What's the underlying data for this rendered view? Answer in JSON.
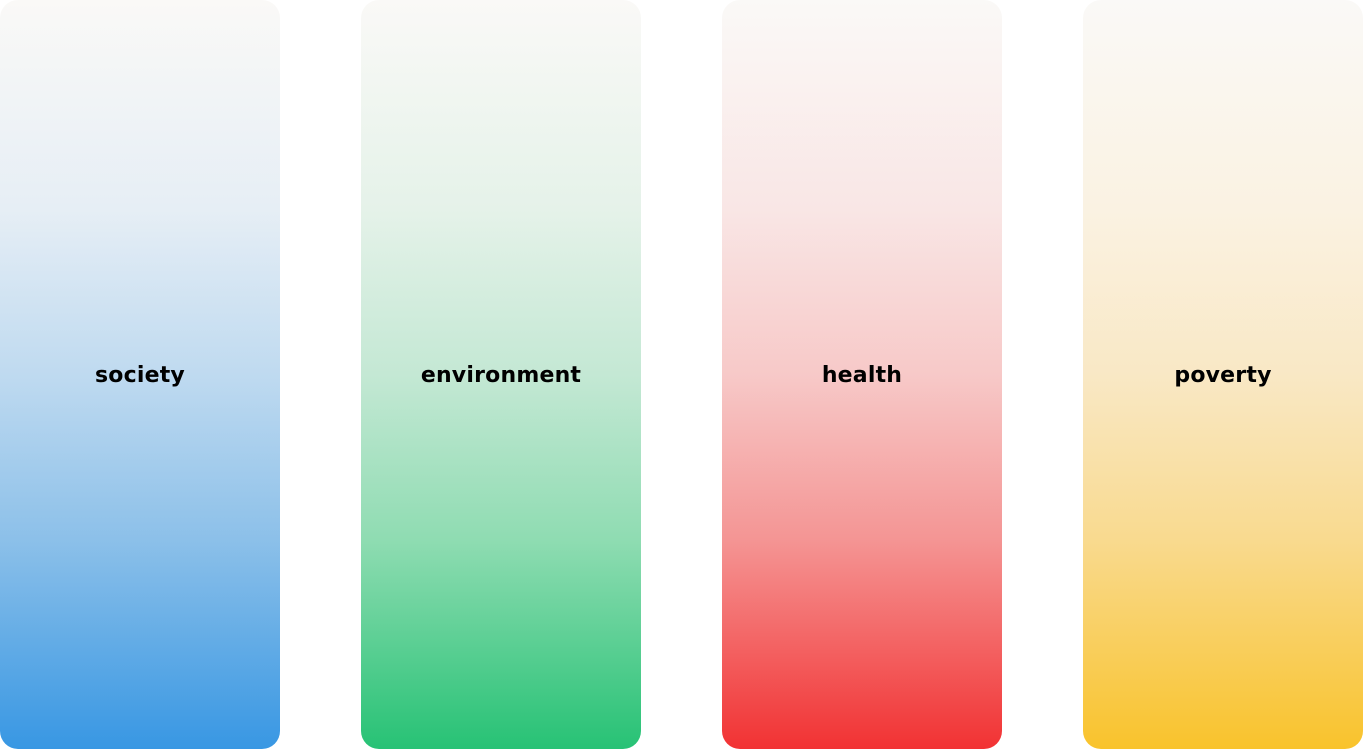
{
  "cards": [
    {
      "label": "society",
      "color": "#3897e3"
    },
    {
      "label": "environment",
      "color": "#27c275"
    },
    {
      "label": "health",
      "color": "#f23233"
    },
    {
      "label": "poverty",
      "color": "#f9c32c"
    }
  ]
}
